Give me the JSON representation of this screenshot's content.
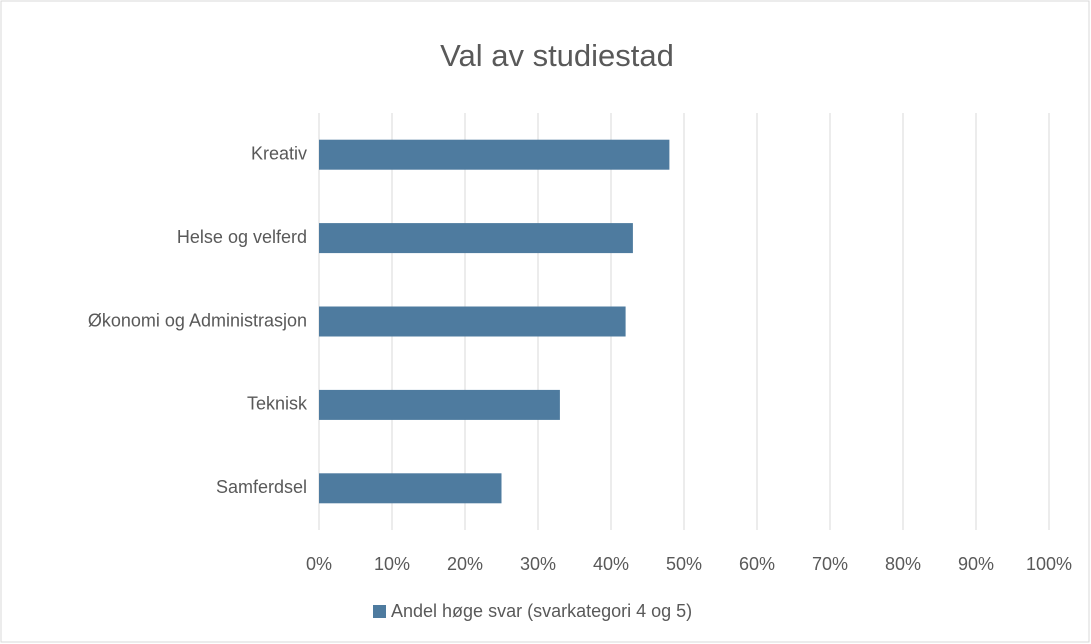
{
  "chart_data": {
    "type": "bar",
    "orientation": "horizontal",
    "title": "Val av studiestad",
    "categories": [
      "Kreativ",
      "Helse og velferd",
      "Økonomi og Administrasjon",
      "Teknisk",
      "Samferdsel"
    ],
    "series": [
      {
        "name": "Andel høge svar (svarkategori 4 og 5)",
        "color": "#4e7b9f",
        "values": [
          48,
          43,
          42,
          33,
          25
        ]
      }
    ],
    "xlim": [
      0,
      100
    ],
    "xticks": [
      {
        "value": 0,
        "label": "0%"
      },
      {
        "value": 10,
        "label": "10%"
      },
      {
        "value": 20,
        "label": "20%"
      },
      {
        "value": 30,
        "label": "30%"
      },
      {
        "value": 40,
        "label": "40%"
      },
      {
        "value": 50,
        "label": "50%"
      },
      {
        "value": 60,
        "label": "60%"
      },
      {
        "value": 70,
        "label": "70%"
      },
      {
        "value": 80,
        "label": "80%"
      },
      {
        "value": 90,
        "label": "90%"
      },
      {
        "value": 100,
        "label": "100%"
      }
    ],
    "grid": true,
    "legend": "bottom"
  }
}
